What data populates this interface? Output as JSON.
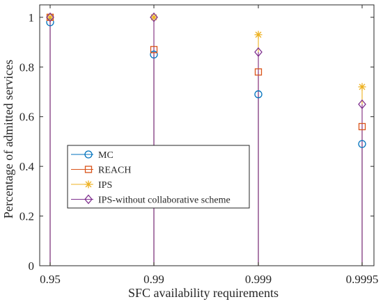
{
  "chart_data": {
    "type": "stem",
    "xlabel": "SFC availability requirements",
    "ylabel": "Percentage of admitted services",
    "categories": [
      "0.95",
      "0.99",
      "0.999",
      "0.9995"
    ],
    "ylim": [
      0,
      1.05
    ],
    "yticks": [
      "0",
      "0.2",
      "0.4",
      "0.6",
      "0.8",
      "1"
    ],
    "grid": false,
    "legend_position": "center-left",
    "series": [
      {
        "name": "MC",
        "values": [
          0.98,
          0.85,
          0.69,
          0.49
        ],
        "color": "#0072BD",
        "marker": "circle"
      },
      {
        "name": "REACH",
        "values": [
          1.0,
          0.87,
          0.78,
          0.56
        ],
        "color": "#D95319",
        "marker": "square"
      },
      {
        "name": "IPS",
        "values": [
          1.0,
          1.0,
          0.93,
          0.72
        ],
        "color": "#EDB120",
        "marker": "asterisk"
      },
      {
        "name": "IPS-without collaborative scheme",
        "values": [
          1.0,
          1.0,
          0.86,
          0.65
        ],
        "color": "#7E2F8E",
        "marker": "diamond"
      }
    ]
  }
}
